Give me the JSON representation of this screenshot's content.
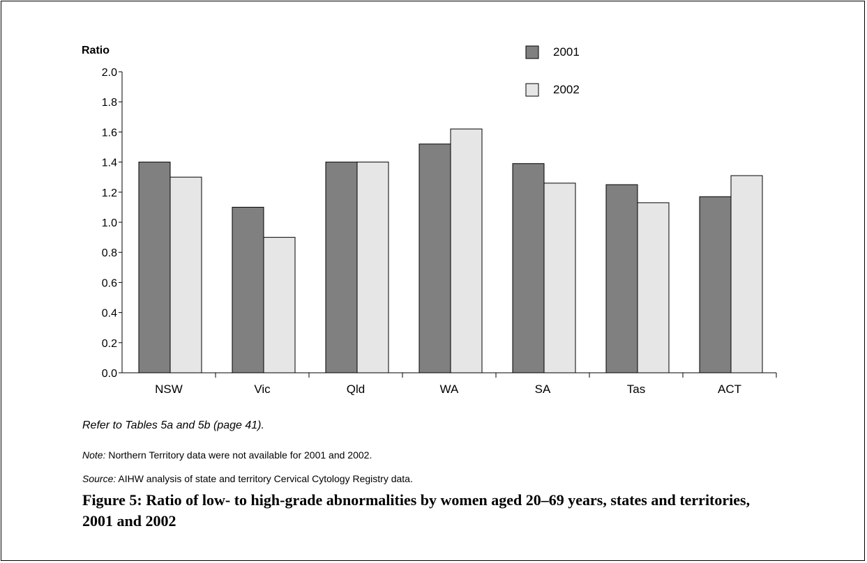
{
  "chart_data": {
    "type": "bar",
    "ylabel": "Ratio",
    "ylim": [
      0,
      2.0
    ],
    "yticks": [
      "0.0",
      "0.2",
      "0.4",
      "0.6",
      "0.8",
      "1.0",
      "1.2",
      "1.4",
      "1.6",
      "1.8",
      "2.0"
    ],
    "categories": [
      "NSW",
      "Vic",
      "Qld",
      "WA",
      "SA",
      "Tas",
      "ACT"
    ],
    "series": [
      {
        "name": "2001",
        "color": "#808080",
        "values": [
          1.4,
          1.1,
          1.4,
          1.52,
          1.39,
          1.25,
          1.17
        ]
      },
      {
        "name": "2002",
        "color": "#e6e6e6",
        "values": [
          1.3,
          0.9,
          1.4,
          1.62,
          1.26,
          1.13,
          1.31
        ]
      }
    ],
    "legend_position": "top-right",
    "grid": false
  },
  "captions": {
    "refer": "Refer to Tables 5a and 5b (page 41).",
    "note_label": "Note:",
    "note_text": " Northern Territory data were not available for 2001 and 2002.",
    "source_label": "Source:",
    "source_text": " AIHW analysis of state and territory Cervical Cytology Registry data.",
    "figure_title": "Figure 5: Ratio of low- to high-grade abnormalities by women aged 20–69 years, states and territories, 2001 and 2002"
  }
}
